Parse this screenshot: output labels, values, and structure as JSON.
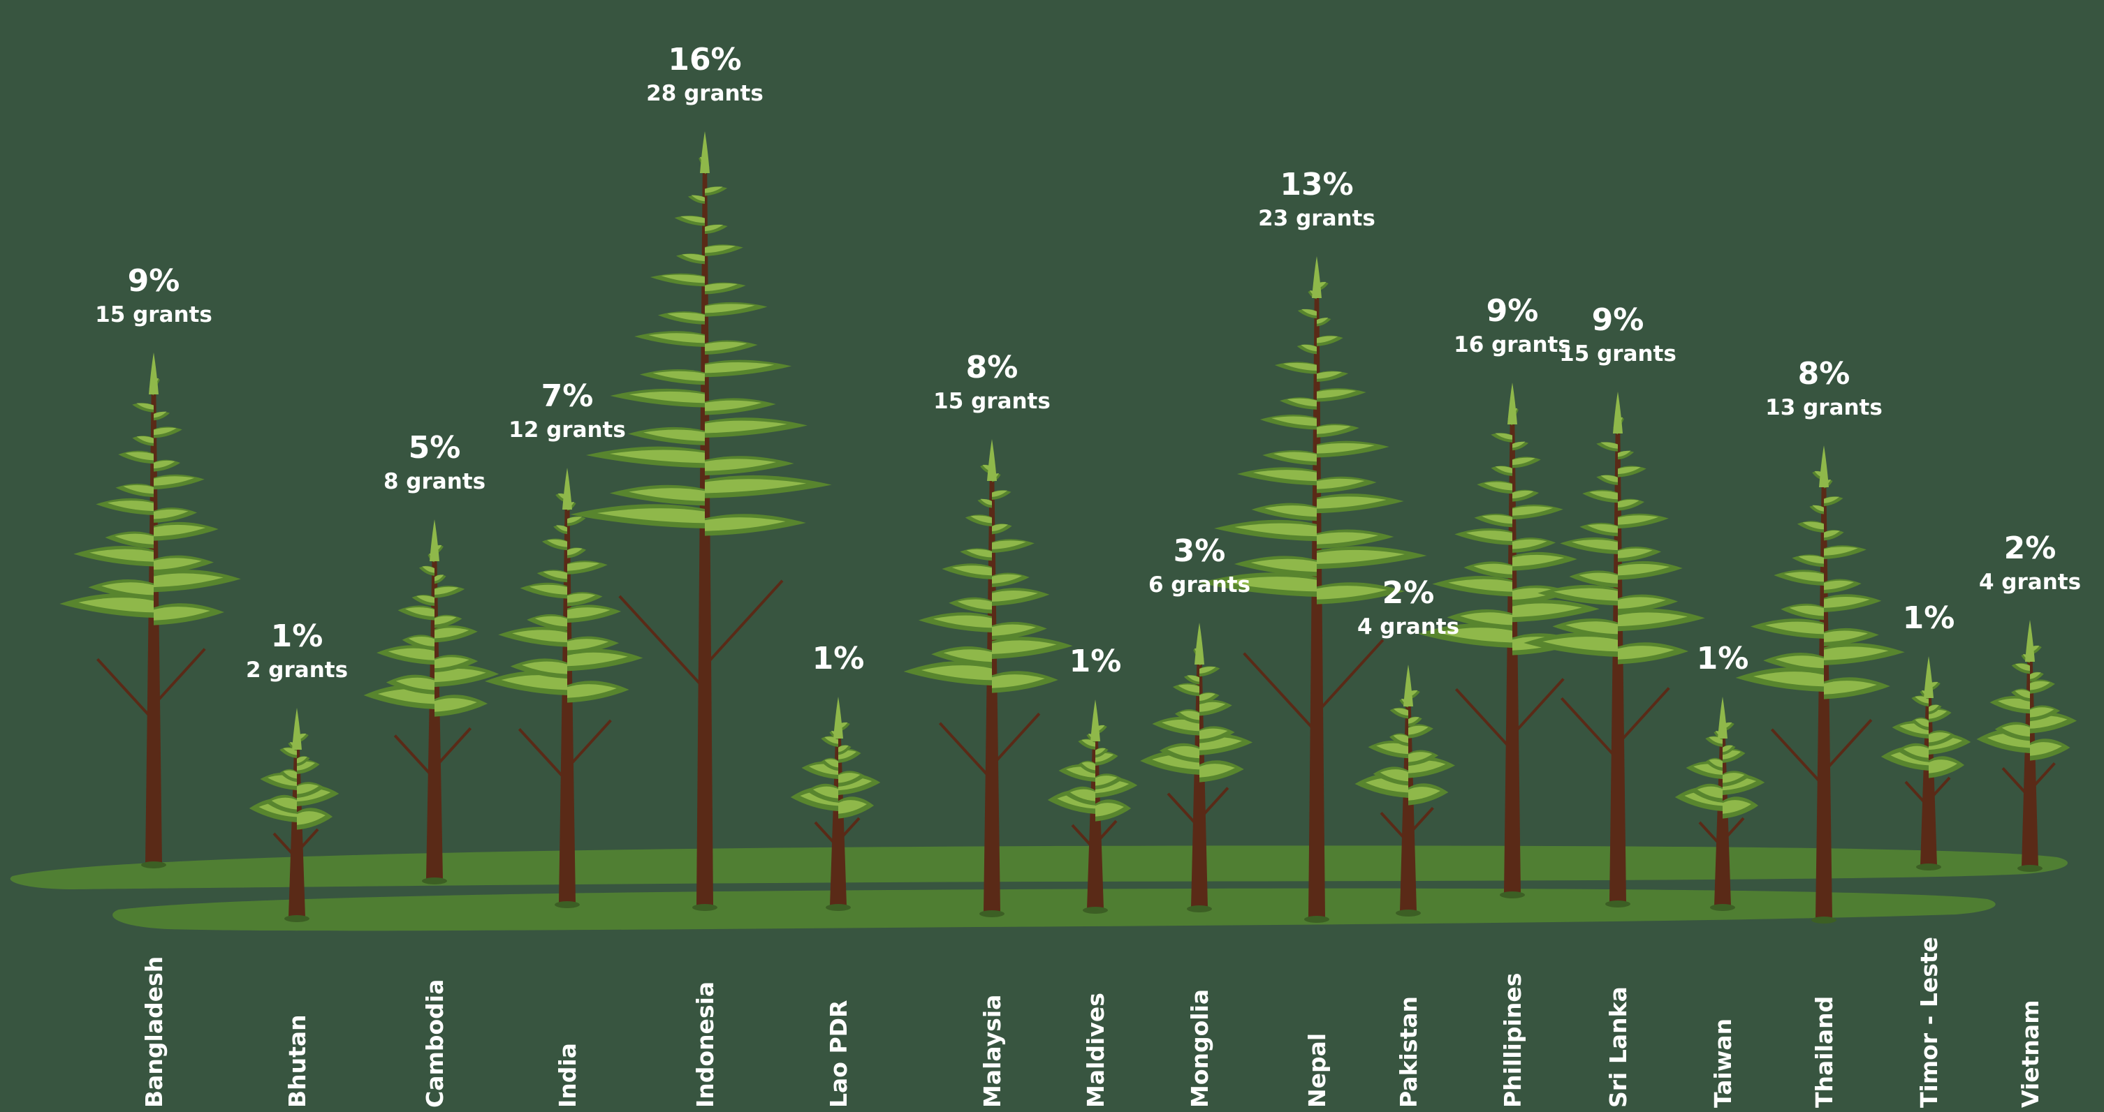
{
  "chart_data": {
    "type": "bar",
    "categories": [
      "Bangladesh",
      "Bhutan",
      "Cambodia",
      "India",
      "Indonesia",
      "Lao PDR",
      "Malaysia",
      "Maldives",
      "Mongolia",
      "Nepal",
      "Pakistan",
      "Phillipines",
      "Sri Lanka",
      "Taiwan",
      "Thailand",
      "Timor - Leste",
      "Vietnam"
    ],
    "values": [
      9,
      1,
      5,
      7,
      16,
      1,
      8,
      1,
      3,
      13,
      2,
      9,
      9,
      1,
      8,
      1,
      2
    ],
    "value_labels": [
      "9%",
      "1%",
      "5%",
      "7%",
      "16%",
      "1%",
      "8%",
      "1%",
      "3%",
      "13%",
      "2%",
      "9%",
      "9%",
      "1%",
      "8%",
      "1%",
      "2%"
    ],
    "grant_labels": [
      "15 grants",
      "2 grants",
      "8 grants",
      "12 grants",
      "28 grants",
      "",
      "15 grants",
      "",
      "6 grants",
      "23 grants",
      "4 grants",
      "16 grants",
      "15 grants",
      "",
      "13 grants",
      "",
      "4 grants"
    ],
    "grants": [
      15,
      2,
      8,
      12,
      28,
      null,
      15,
      null,
      6,
      23,
      4,
      16,
      15,
      null,
      13,
      null,
      4
    ],
    "unit": "%",
    "mark_style": "trees",
    "grid": false,
    "legend": "none",
    "colors": {
      "background": "#385540",
      "ground": "#507f33",
      "trunk": "#5a2a17",
      "foliage_dark": "#58852e",
      "foliage_light": "#8fb84a",
      "text": "#ffffff"
    }
  }
}
